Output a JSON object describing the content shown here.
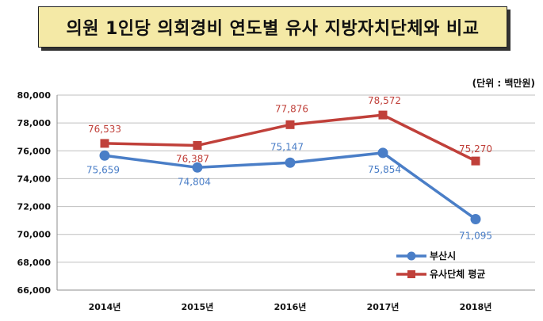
{
  "title": "의원 1인당 의회경비 연도별 유사 지방자치단체와 비교",
  "unit": "(단위 : 백만원)",
  "colors": {
    "busan": "#4a7ec7",
    "peer": "#c0403a",
    "title_bg": "#f4e9a6",
    "grid": "#bfbfbf"
  },
  "chart_data": {
    "type": "line",
    "categories": [
      "2014년",
      "2015년",
      "2016년",
      "2017년",
      "2018년"
    ],
    "ylim": [
      66000,
      80000
    ],
    "ytick_step": 2000,
    "yticks": [
      "66,000",
      "68,000",
      "70,000",
      "72,000",
      "74,000",
      "76,000",
      "78,000",
      "80,000"
    ],
    "grid": "horizontal",
    "legend_position": "lower-right",
    "series": [
      {
        "name": "부산시",
        "values": [
          75659,
          74804,
          75147,
          75854,
          71095
        ],
        "labels": [
          "75,659",
          "74,804",
          "75,147",
          "75,854",
          "71,095"
        ],
        "marker": "circle",
        "color": "#4a7ec7"
      },
      {
        "name": "유사단체 평균",
        "values": [
          76533,
          76387,
          77876,
          78572,
          75270
        ],
        "labels": [
          "76,533",
          "76,387",
          "77,876",
          "78,572",
          "75,270"
        ],
        "marker": "square",
        "color": "#c0403a"
      }
    ]
  }
}
